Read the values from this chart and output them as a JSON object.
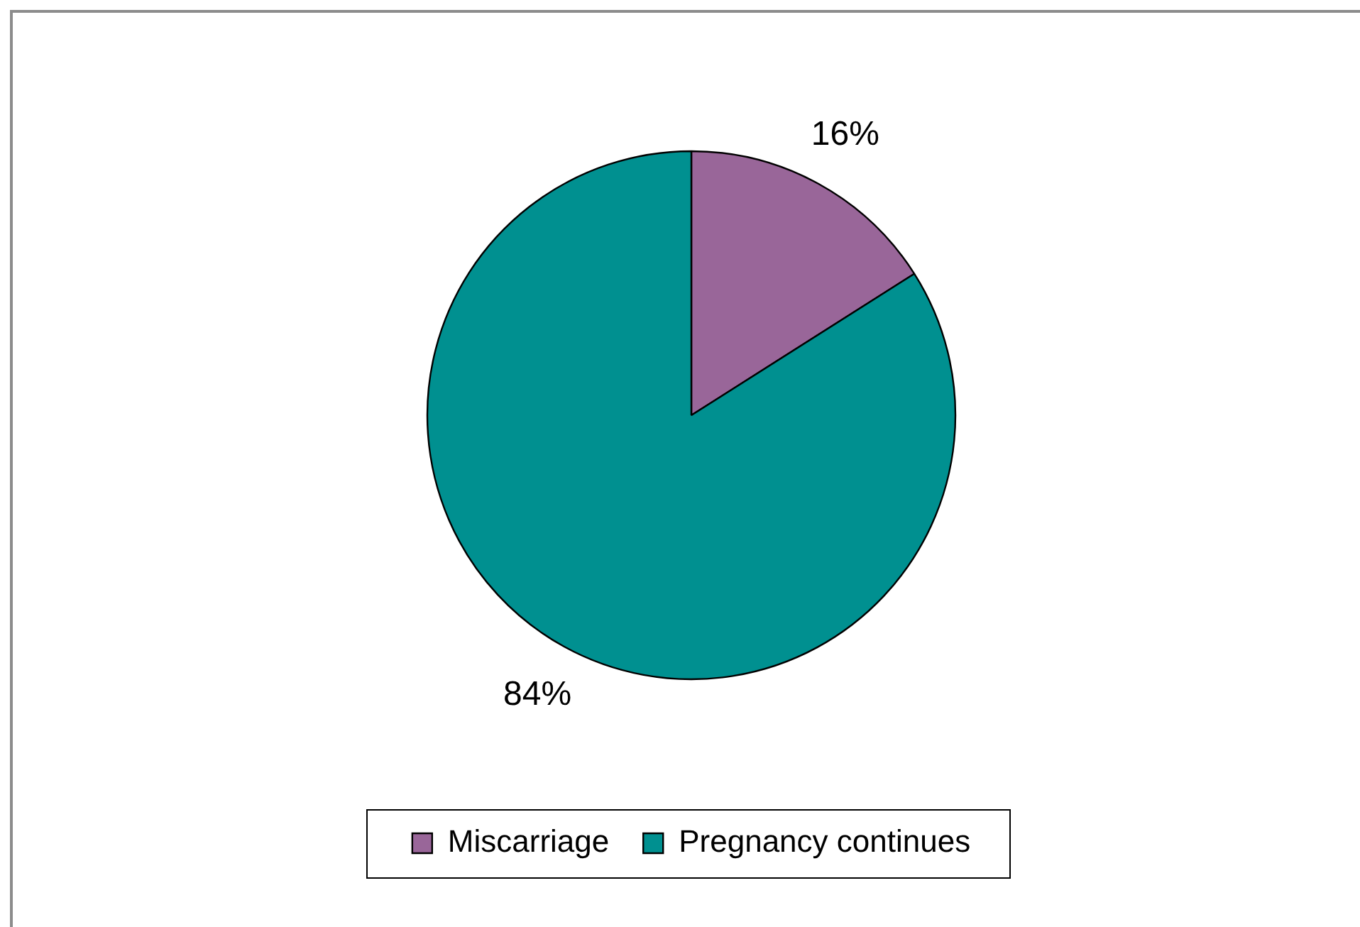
{
  "chart_data": {
    "type": "pie",
    "categories": [
      "Miscarriage",
      "Pregnancy continues"
    ],
    "values": [
      16,
      84
    ],
    "value_labels": [
      "16%",
      "84%"
    ],
    "colors": [
      "#996699",
      "#009090"
    ],
    "legend": "bottom"
  }
}
